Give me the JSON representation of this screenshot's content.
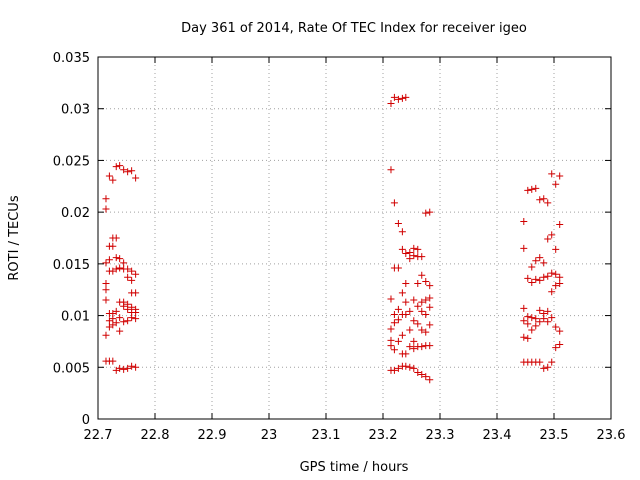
{
  "chart_data": {
    "type": "scatter",
    "title": "Day 361 of 2014, Rate Of TEC Index for receiver igeo",
    "xlabel": "GPS time / hours",
    "ylabel": "ROTI / TECUs",
    "xlim": [
      22.7,
      23.6
    ],
    "ylim": [
      0,
      0.035
    ],
    "xticks": [
      "22.7",
      "22.8",
      "22.9",
      "23",
      "23.1",
      "23.2",
      "23.3",
      "23.4",
      "23.5",
      "23.6"
    ],
    "yticks": [
      "0",
      "0.005",
      "0.01",
      "0.015",
      "0.02",
      "0.025",
      "0.03",
      "0.035"
    ],
    "grid": true,
    "marker": "plus",
    "color": "#d00000",
    "series": [
      {
        "name": "ROTI",
        "points": [
          [
            22.714,
            0.0115
          ],
          [
            22.714,
            0.0125
          ],
          [
            22.714,
            0.0131
          ],
          [
            22.714,
            0.0151
          ],
          [
            22.714,
            0.0203
          ],
          [
            22.714,
            0.0213
          ],
          [
            22.714,
            0.0081
          ],
          [
            22.714,
            0.0056
          ],
          [
            22.72,
            0.0235
          ],
          [
            22.72,
            0.0167
          ],
          [
            22.72,
            0.0154
          ],
          [
            22.72,
            0.0143
          ],
          [
            22.72,
            0.0102
          ],
          [
            22.72,
            0.0095
          ],
          [
            22.72,
            0.0089
          ],
          [
            22.72,
            0.0056
          ],
          [
            22.726,
            0.0231
          ],
          [
            22.726,
            0.0175
          ],
          [
            22.726,
            0.0167
          ],
          [
            22.726,
            0.0143
          ],
          [
            22.726,
            0.0102
          ],
          [
            22.726,
            0.0097
          ],
          [
            22.726,
            0.0091
          ],
          [
            22.726,
            0.0056
          ],
          [
            22.732,
            0.0244
          ],
          [
            22.732,
            0.0175
          ],
          [
            22.732,
            0.0156
          ],
          [
            22.732,
            0.0145
          ],
          [
            22.732,
            0.0104
          ],
          [
            22.732,
            0.0093
          ],
          [
            22.732,
            0.0047
          ],
          [
            22.738,
            0.0245
          ],
          [
            22.738,
            0.0155
          ],
          [
            22.738,
            0.0146
          ],
          [
            22.738,
            0.0113
          ],
          [
            22.738,
            0.0098
          ],
          [
            22.738,
            0.0085
          ],
          [
            22.738,
            0.0049
          ],
          [
            22.745,
            0.0241
          ],
          [
            22.745,
            0.0151
          ],
          [
            22.745,
            0.0145
          ],
          [
            22.745,
            0.0113
          ],
          [
            22.745,
            0.0109
          ],
          [
            22.745,
            0.0094
          ],
          [
            22.745,
            0.0048
          ],
          [
            22.752,
            0.0239
          ],
          [
            22.752,
            0.0145
          ],
          [
            22.752,
            0.0137
          ],
          [
            22.752,
            0.0111
          ],
          [
            22.752,
            0.0106
          ],
          [
            22.752,
            0.0095
          ],
          [
            22.752,
            0.0049
          ],
          [
            22.759,
            0.024
          ],
          [
            22.759,
            0.0143
          ],
          [
            22.759,
            0.0134
          ],
          [
            22.759,
            0.0122
          ],
          [
            22.759,
            0.0108
          ],
          [
            22.759,
            0.0103
          ],
          [
            22.759,
            0.0098
          ],
          [
            22.759,
            0.0051
          ],
          [
            22.766,
            0.0233
          ],
          [
            22.766,
            0.014
          ],
          [
            22.766,
            0.0122
          ],
          [
            22.766,
            0.0106
          ],
          [
            22.766,
            0.0103
          ],
          [
            22.766,
            0.0097
          ],
          [
            22.766,
            0.005
          ],
          [
            23.214,
            0.0305
          ],
          [
            23.214,
            0.0241
          ],
          [
            23.214,
            0.0116
          ],
          [
            23.214,
            0.0087
          ],
          [
            23.214,
            0.0076
          ],
          [
            23.214,
            0.0071
          ],
          [
            23.214,
            0.0047
          ],
          [
            23.22,
            0.0311
          ],
          [
            23.22,
            0.0209
          ],
          [
            23.22,
            0.0146
          ],
          [
            23.22,
            0.0101
          ],
          [
            23.22,
            0.0093
          ],
          [
            23.22,
            0.0067
          ],
          [
            23.22,
            0.0047
          ],
          [
            23.227,
            0.0309
          ],
          [
            23.227,
            0.0189
          ],
          [
            23.227,
            0.0146
          ],
          [
            23.227,
            0.0106
          ],
          [
            23.227,
            0.0096
          ],
          [
            23.227,
            0.0075
          ],
          [
            23.227,
            0.0049
          ],
          [
            23.234,
            0.031
          ],
          [
            23.234,
            0.0181
          ],
          [
            23.234,
            0.0164
          ],
          [
            23.234,
            0.0122
          ],
          [
            23.234,
            0.0101
          ],
          [
            23.234,
            0.0081
          ],
          [
            23.234,
            0.0063
          ],
          [
            23.234,
            0.0051
          ],
          [
            23.24,
            0.0311
          ],
          [
            23.24,
            0.016
          ],
          [
            23.24,
            0.0131
          ],
          [
            23.24,
            0.0113
          ],
          [
            23.24,
            0.0101
          ],
          [
            23.24,
            0.0063
          ],
          [
            23.24,
            0.0051
          ],
          [
            23.247,
            0.0161
          ],
          [
            23.247,
            0.0155
          ],
          [
            23.247,
            0.0104
          ],
          [
            23.247,
            0.0086
          ],
          [
            23.247,
            0.007
          ],
          [
            23.247,
            0.005
          ],
          [
            23.254,
            0.0165
          ],
          [
            23.254,
            0.0158
          ],
          [
            23.254,
            0.0115
          ],
          [
            23.254,
            0.0095
          ],
          [
            23.254,
            0.0075
          ],
          [
            23.254,
            0.0068
          ],
          [
            23.254,
            0.0049
          ],
          [
            23.261,
            0.0164
          ],
          [
            23.261,
            0.0157
          ],
          [
            23.261,
            0.0131
          ],
          [
            23.261,
            0.0109
          ],
          [
            23.261,
            0.0092
          ],
          [
            23.261,
            0.007
          ],
          [
            23.261,
            0.0045
          ],
          [
            23.268,
            0.0157
          ],
          [
            23.268,
            0.0139
          ],
          [
            23.268,
            0.0113
          ],
          [
            23.268,
            0.0104
          ],
          [
            23.268,
            0.0086
          ],
          [
            23.268,
            0.007
          ],
          [
            23.268,
            0.0043
          ],
          [
            23.275,
            0.0199
          ],
          [
            23.275,
            0.0133
          ],
          [
            23.275,
            0.0115
          ],
          [
            23.275,
            0.0101
          ],
          [
            23.275,
            0.0084
          ],
          [
            23.275,
            0.0071
          ],
          [
            23.275,
            0.0041
          ],
          [
            23.282,
            0.02
          ],
          [
            23.282,
            0.0129
          ],
          [
            23.282,
            0.0117
          ],
          [
            23.282,
            0.0108
          ],
          [
            23.282,
            0.0091
          ],
          [
            23.282,
            0.0071
          ],
          [
            23.282,
            0.0038
          ],
          [
            23.447,
            0.0191
          ],
          [
            23.447,
            0.0165
          ],
          [
            23.447,
            0.0107
          ],
          [
            23.447,
            0.0095
          ],
          [
            23.447,
            0.0079
          ],
          [
            23.447,
            0.0055
          ],
          [
            23.454,
            0.0221
          ],
          [
            23.454,
            0.0136
          ],
          [
            23.454,
            0.0099
          ],
          [
            23.454,
            0.0092
          ],
          [
            23.454,
            0.0078
          ],
          [
            23.454,
            0.0055
          ],
          [
            23.461,
            0.0222
          ],
          [
            23.461,
            0.0147
          ],
          [
            23.461,
            0.0132
          ],
          [
            23.461,
            0.0098
          ],
          [
            23.461,
            0.0086
          ],
          [
            23.461,
            0.0055
          ],
          [
            23.468,
            0.0223
          ],
          [
            23.468,
            0.0153
          ],
          [
            23.468,
            0.0135
          ],
          [
            23.468,
            0.0097
          ],
          [
            23.468,
            0.009
          ],
          [
            23.468,
            0.0055
          ],
          [
            23.475,
            0.0212
          ],
          [
            23.475,
            0.0156
          ],
          [
            23.475,
            0.0134
          ],
          [
            23.475,
            0.0105
          ],
          [
            23.475,
            0.0094
          ],
          [
            23.475,
            0.0055
          ],
          [
            23.482,
            0.0213
          ],
          [
            23.482,
            0.0151
          ],
          [
            23.482,
            0.0137
          ],
          [
            23.482,
            0.0102
          ],
          [
            23.482,
            0.0097
          ],
          [
            23.482,
            0.0049
          ],
          [
            23.489,
            0.0209
          ],
          [
            23.489,
            0.0174
          ],
          [
            23.489,
            0.0138
          ],
          [
            23.489,
            0.0104
          ],
          [
            23.489,
            0.0094
          ],
          [
            23.489,
            0.005
          ],
          [
            23.496,
            0.0237
          ],
          [
            23.496,
            0.0178
          ],
          [
            23.496,
            0.0141
          ],
          [
            23.496,
            0.0123
          ],
          [
            23.496,
            0.0098
          ],
          [
            23.496,
            0.0055
          ],
          [
            23.503,
            0.0227
          ],
          [
            23.503,
            0.0164
          ],
          [
            23.503,
            0.014
          ],
          [
            23.503,
            0.0129
          ],
          [
            23.503,
            0.0089
          ],
          [
            23.503,
            0.0069
          ],
          [
            23.51,
            0.0235
          ],
          [
            23.51,
            0.0188
          ],
          [
            23.51,
            0.0137
          ],
          [
            23.51,
            0.0131
          ],
          [
            23.51,
            0.0085
          ],
          [
            23.51,
            0.0072
          ]
        ]
      }
    ]
  }
}
